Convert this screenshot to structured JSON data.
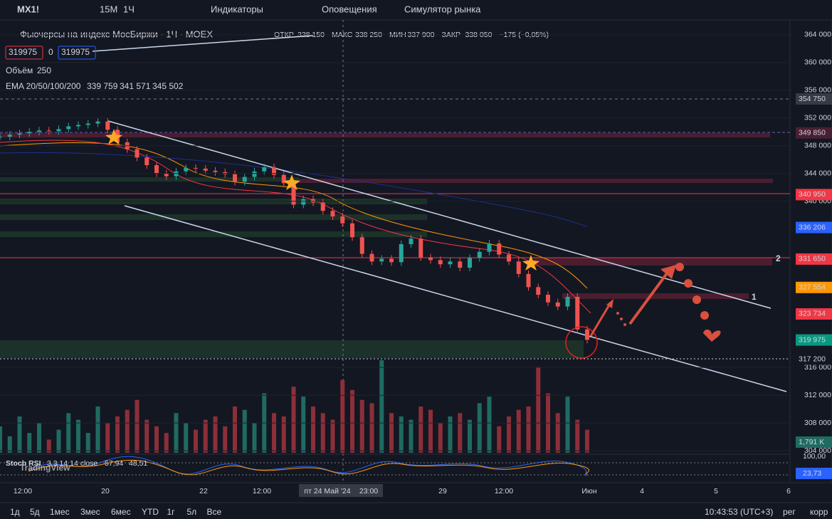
{
  "toolbar": {
    "symbol": "MX1!",
    "intervals": [
      "15M",
      "1Ч"
    ],
    "indicators": "Индикаторы",
    "alerts": "Оповещения",
    "replay": "Симулятор рынка"
  },
  "legend": {
    "title": "Фьючерсы на индекс МосБиржи · 1Ч · MOEX",
    "ohlc": [
      {
        "label": "ОТКР",
        "value": "338 150"
      },
      {
        "label": "МАКС",
        "value": "338 250"
      },
      {
        "label": "МИН",
        "value": "337 900"
      },
      {
        "label": "ЗАКР",
        "value": "338 050"
      }
    ],
    "change": "−175 (−0,05%)",
    "sell": "319975",
    "spread": "0",
    "buy": "319975",
    "volume": {
      "label": "Объём",
      "value": "250"
    },
    "ema": {
      "label": "EMA 20/50/100/200",
      "values": [
        "339 759",
        "341 571",
        "345 502"
      ]
    }
  },
  "chart": {
    "ylim": [
      303700,
      366150
    ],
    "closes": [
      349300,
      349600,
      349800,
      350000,
      350200,
      350100,
      350400,
      350800,
      351000,
      351200,
      351500,
      350300,
      348500,
      347500,
      346300,
      345200,
      344000,
      343600,
      344300,
      344800,
      344700,
      344400,
      344200,
      343900,
      342800,
      343500,
      344300,
      344900,
      343800,
      342600,
      339500,
      340300,
      339800,
      338600,
      337800,
      336800,
      334800,
      332400,
      331300,
      331700,
      331200,
      333800,
      334600,
      331900,
      331500,
      330900,
      331300,
      330400,
      331800,
      332700,
      333900,
      332300,
      331300,
      329500,
      327600,
      326500,
      325400,
      324800,
      326200,
      321500,
      320000
    ],
    "volumes": [
      40,
      25,
      55,
      30,
      45,
      20,
      35,
      60,
      50,
      30,
      70,
      45,
      55,
      65,
      80,
      50,
      40,
      30,
      60,
      45,
      35,
      50,
      55,
      40,
      70,
      65,
      45,
      90,
      60,
      55,
      100,
      85,
      70,
      60,
      50,
      110,
      95,
      80,
      75,
      140,
      60,
      55,
      50,
      70,
      65,
      45,
      55,
      60,
      50,
      75,
      85,
      40,
      55,
      65,
      70,
      130,
      90,
      60,
      85,
      50,
      35
    ],
    "price_ticks": [
      {
        "value": 364000,
        "label": "364 000"
      },
      {
        "value": 360000,
        "label": "360 000"
      },
      {
        "value": 356000,
        "label": "356 000"
      },
      {
        "value": 352000,
        "label": "352 000"
      },
      {
        "value": 348000,
        "label": "348 000"
      },
      {
        "value": 344000,
        "label": "344 000"
      },
      {
        "value": 340000,
        "label": "340 000"
      },
      {
        "value": 316000,
        "label": "316 000"
      },
      {
        "value": 312000,
        "label": "312 000"
      },
      {
        "value": 308000,
        "label": "308 000"
      },
      {
        "value": 304000,
        "label": "304 000"
      }
    ],
    "price_tags": [
      {
        "value": 354750,
        "label": "354 750",
        "color": "#363a45"
      },
      {
        "value": 349850,
        "label": "349 850",
        "color": "#4a1f33"
      },
      {
        "value": 340950,
        "label": "340 950",
        "color": "#f23645"
      },
      {
        "value": 336206,
        "label": "336 206",
        "color": "#2962ff"
      },
      {
        "value": 331650,
        "label": "331 650",
        "color": "#f23645"
      },
      {
        "value": 327554,
        "label": "327 554",
        "color": "#ff9800"
      },
      {
        "value": 323734,
        "label": "323 734",
        "color": "#f23645"
      },
      {
        "value": 319975,
        "label": "319 975",
        "color": "#089981"
      },
      {
        "value": 317200,
        "label": "317 200",
        "color": "#131722"
      }
    ],
    "volume_tag": "1,791 K",
    "annotations": [
      "1",
      "2"
    ],
    "watermark": "TradingView"
  },
  "stoch": {
    "label": "Stoch RSI",
    "params": "3 3 14 14 close",
    "k": "57,94",
    "d": "48,51",
    "axis_top": "100,00",
    "tag": "23,73"
  },
  "time_axis": [
    "12:00",
    "20",
    "22",
    "12:00",
    "пт 24 Май '24",
    "23:00",
    "29",
    "12:00",
    "Июн",
    "4",
    "5",
    "6"
  ],
  "bottom_bar": {
    "ranges": [
      "1д",
      "5д",
      "1мес",
      "3мес",
      "6мес",
      "YTD",
      "1г",
      "5л",
      "Все"
    ],
    "clock": "10:43:53 (UTC+3)",
    "session": "рег",
    "adjust": "корр"
  }
}
